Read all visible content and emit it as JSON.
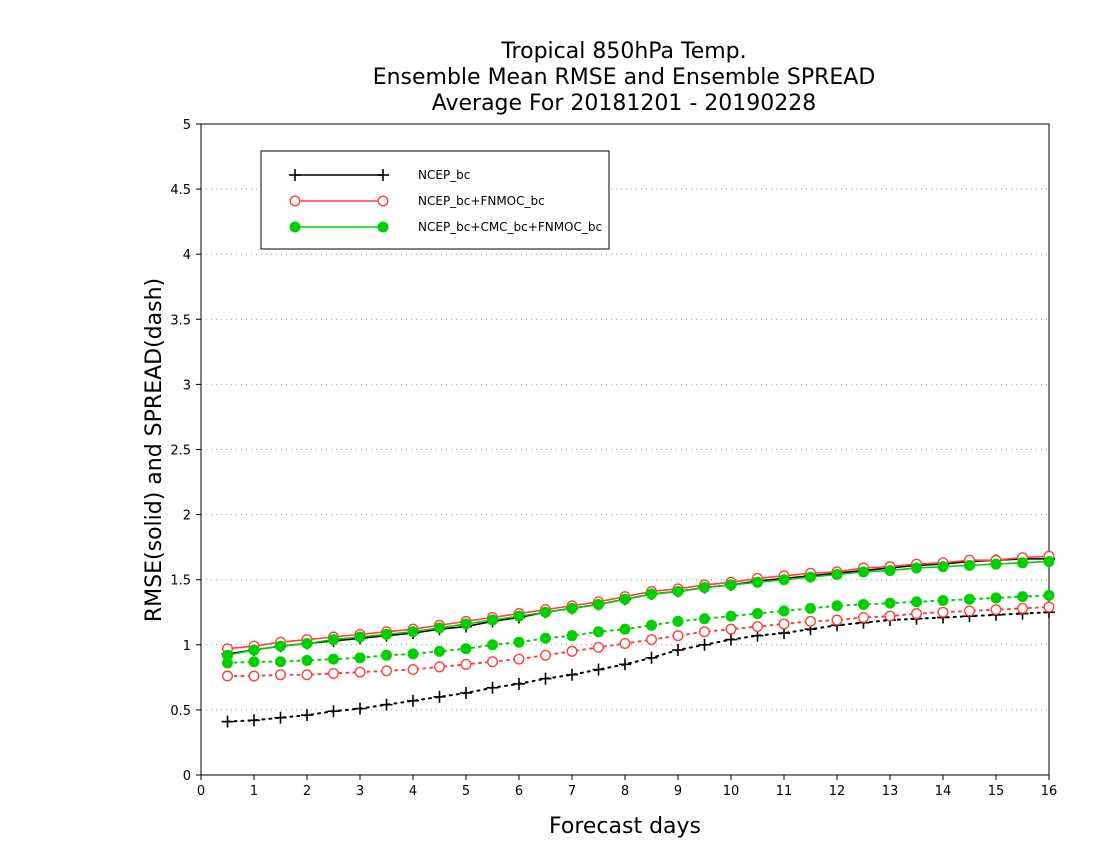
{
  "chart_data": {
    "type": "line",
    "title": [
      "Tropical 850hPa Temp.",
      "Ensemble Mean RMSE and Ensemble SPREAD",
      "Average For 20181201 - 20190228"
    ],
    "xlabel": "Forecast days",
    "ylabel": "RMSE(solid) and SPREAD(dash)",
    "xlim": [
      0,
      16
    ],
    "ylim": [
      0,
      5
    ],
    "xticks": [
      "0",
      "1",
      "2",
      "3",
      "4",
      "5",
      "6",
      "7",
      "8",
      "9",
      "10",
      "11",
      "12",
      "13",
      "14",
      "15",
      "16"
    ],
    "yticks": [
      "0",
      "0.5",
      "1",
      "1.5",
      "2",
      "2.5",
      "3",
      "3.5",
      "4",
      "4.5",
      "5"
    ],
    "grid": true,
    "legend_position": "top-left",
    "x": [
      0.5,
      1,
      1.5,
      2,
      2.5,
      3,
      3.5,
      4,
      4.5,
      5,
      5.5,
      6,
      6.5,
      7,
      7.5,
      8,
      8.5,
      9,
      9.5,
      10,
      10.5,
      11,
      11.5,
      12,
      12.5,
      13,
      13.5,
      14,
      14.5,
      15,
      15.5,
      16
    ],
    "series": [
      {
        "name": "NCEP_bc",
        "color": "#000000",
        "marker": "plus",
        "rmse": [
          0.93,
          0.96,
          0.99,
          1.01,
          1.03,
          1.05,
          1.07,
          1.09,
          1.12,
          1.14,
          1.18,
          1.21,
          1.25,
          1.28,
          1.31,
          1.35,
          1.39,
          1.41,
          1.44,
          1.46,
          1.49,
          1.51,
          1.53,
          1.55,
          1.57,
          1.59,
          1.61,
          1.62,
          1.64,
          1.65,
          1.66,
          1.66
        ],
        "spread": [
          0.41,
          0.42,
          0.44,
          0.46,
          0.49,
          0.51,
          0.54,
          0.57,
          0.6,
          0.63,
          0.67,
          0.7,
          0.74,
          0.77,
          0.81,
          0.85,
          0.9,
          0.96,
          1.0,
          1.04,
          1.07,
          1.09,
          1.12,
          1.15,
          1.17,
          1.19,
          1.2,
          1.21,
          1.22,
          1.23,
          1.24,
          1.25
        ]
      },
      {
        "name": "NCEP_bc+FNMOC_bc",
        "color": "#ff4040",
        "marker": "open-circle",
        "rmse": [
          0.97,
          0.99,
          1.02,
          1.04,
          1.06,
          1.08,
          1.1,
          1.12,
          1.15,
          1.18,
          1.21,
          1.24,
          1.27,
          1.3,
          1.33,
          1.37,
          1.41,
          1.43,
          1.46,
          1.48,
          1.51,
          1.53,
          1.55,
          1.56,
          1.59,
          1.6,
          1.62,
          1.63,
          1.65,
          1.65,
          1.67,
          1.68
        ],
        "spread": [
          0.76,
          0.76,
          0.77,
          0.77,
          0.78,
          0.79,
          0.8,
          0.81,
          0.83,
          0.85,
          0.87,
          0.89,
          0.92,
          0.95,
          0.98,
          1.01,
          1.04,
          1.07,
          1.1,
          1.12,
          1.14,
          1.16,
          1.18,
          1.19,
          1.21,
          1.22,
          1.24,
          1.25,
          1.26,
          1.27,
          1.28,
          1.29
        ]
      },
      {
        "name": "NCEP_bc+CMC_bc+FNMOC_bc",
        "color": "#00d000",
        "marker": "filled-circle",
        "rmse": [
          0.92,
          0.96,
          0.99,
          1.01,
          1.04,
          1.06,
          1.08,
          1.1,
          1.13,
          1.16,
          1.19,
          1.22,
          1.25,
          1.28,
          1.31,
          1.35,
          1.39,
          1.41,
          1.44,
          1.46,
          1.48,
          1.5,
          1.52,
          1.54,
          1.56,
          1.57,
          1.59,
          1.6,
          1.61,
          1.62,
          1.63,
          1.64
        ],
        "spread": [
          0.86,
          0.87,
          0.87,
          0.88,
          0.89,
          0.9,
          0.92,
          0.93,
          0.95,
          0.97,
          1.0,
          1.02,
          1.05,
          1.07,
          1.1,
          1.12,
          1.15,
          1.18,
          1.2,
          1.22,
          1.24,
          1.26,
          1.28,
          1.3,
          1.31,
          1.32,
          1.33,
          1.34,
          1.35,
          1.36,
          1.37,
          1.38
        ]
      }
    ]
  }
}
